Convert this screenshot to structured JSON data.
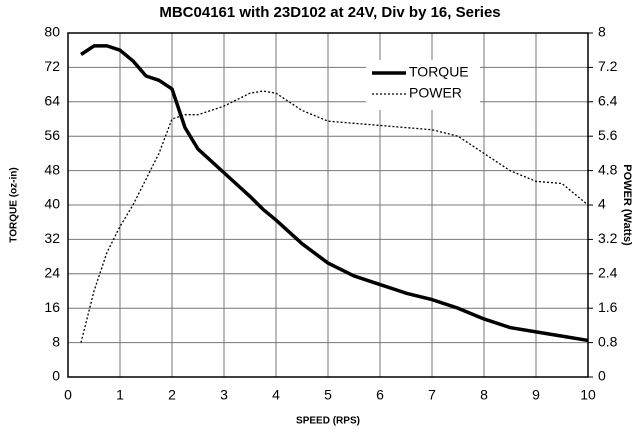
{
  "chart_data": {
    "type": "line",
    "title": "MBC04161 with 23D102 at 24V, Div by 16, Series",
    "x_label": "SPEED (RPS)",
    "y_label": "TORQUE (oz-in)",
    "y2_label": "POWER (Watts)",
    "x": [
      0.25,
      0.5,
      0.75,
      1,
      1.25,
      1.5,
      1.75,
      2,
      2.25,
      2.5,
      3,
      3.5,
      3.75,
      4,
      4.5,
      5,
      5.5,
      6,
      6.5,
      7,
      7.5,
      8,
      8.5,
      9,
      9.5,
      10
    ],
    "series": [
      {
        "name": "TORQUE",
        "color": "#000000",
        "line_style": "solid",
        "axis": "y",
        "values": [
          75,
          77,
          77,
          76,
          73.5,
          70,
          69,
          67,
          58,
          53,
          47.5,
          42,
          39,
          36.5,
          31,
          26.5,
          23.5,
          21.5,
          19.5,
          18,
          16,
          13.5,
          11.5,
          10.5,
          9.5,
          8.5
        ]
      },
      {
        "name": "POWER",
        "color": "#000000",
        "line_style": "dotted",
        "axis": "y2",
        "values": [
          0.8,
          2,
          2.9,
          3.5,
          4,
          4.6,
          5.2,
          6,
          6.1,
          6.1,
          6.3,
          6.6,
          6.65,
          6.6,
          6.2,
          5.95,
          5.9,
          5.85,
          5.8,
          5.75,
          5.6,
          5.2,
          4.8,
          4.55,
          4.5,
          4
        ]
      }
    ],
    "xlim": [
      0,
      10
    ],
    "xticks": [
      0,
      1,
      2,
      3,
      4,
      5,
      6,
      7,
      8,
      9,
      10
    ],
    "ylim": [
      0,
      80
    ],
    "yticks": [
      0,
      8,
      16,
      24,
      32,
      40,
      48,
      56,
      64,
      72,
      80
    ],
    "y2lim": [
      0,
      8
    ],
    "y2ticks": [
      0,
      0.8,
      1.6,
      2.4,
      3.2,
      4,
      4.8,
      5.6,
      6.4,
      7.2,
      8
    ],
    "grid": true,
    "legend": "upper right"
  }
}
